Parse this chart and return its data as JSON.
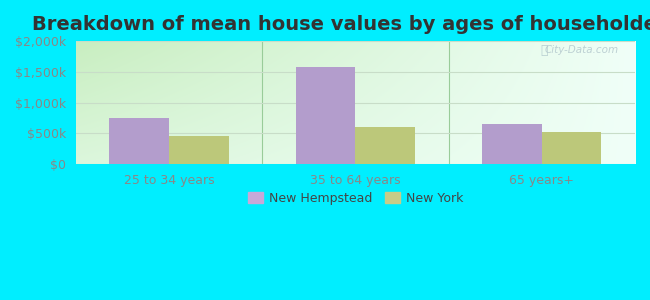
{
  "title": "Breakdown of mean house values by ages of householders",
  "categories": [
    "25 to 34 years",
    "35 to 64 years",
    "65 years+"
  ],
  "series": {
    "New Hempstead": [
      750000,
      1580000,
      650000
    ],
    "New York": [
      460000,
      600000,
      520000
    ]
  },
  "bar_colors": {
    "New Hempstead": "#b39dcc",
    "New York": "#bcc87a"
  },
  "ylim": [
    0,
    2000000
  ],
  "yticks": [
    0,
    500000,
    1000000,
    1500000,
    2000000
  ],
  "ytick_labels": [
    "$0",
    "$500k",
    "$1,000k",
    "$1,500k",
    "$2,000k"
  ],
  "background_outer": "#00eeff",
  "background_inner_topleft": "#c8eec0",
  "background_inner_bottomright": "#f0fff8",
  "grid_color": "#c8ddc8",
  "bar_width": 0.32,
  "watermark": "City-Data.com",
  "title_fontsize": 14,
  "tick_fontsize": 9,
  "legend_fontsize": 9,
  "tick_color": "#888888",
  "divider_color": "#99cc99",
  "legend_marker_color_nh": "#c8a8d8",
  "legend_marker_color_ny": "#c8cc88"
}
